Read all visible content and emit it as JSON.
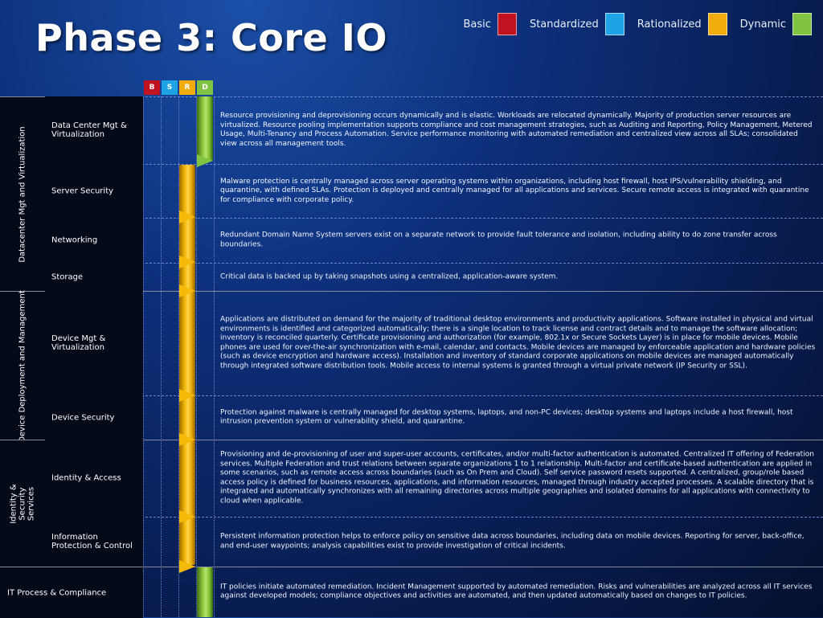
{
  "title": "Phase 3: Core IO",
  "legend": [
    {
      "label": "Basic",
      "color": "#c1121f"
    },
    {
      "label": "Standardized",
      "color": "#1ea3e6"
    },
    {
      "label": "Rationalized",
      "color": "#f0ac0c"
    },
    {
      "label": "Dynamic",
      "color": "#80c342"
    }
  ],
  "columns": {
    "b": "B",
    "s": "S",
    "r": "R",
    "d": "D"
  },
  "categories": {
    "datacenter": "Datacenter Mgt and Virtualization",
    "device": "Device Deployment and Management",
    "identity": "Identity & Security Services",
    "it_process": "IT Process & Compliance"
  },
  "rows": {
    "dc_mgt": {
      "label": "Data Center Mgt & Virtualization",
      "desc": "Resource provisioning and deprovisioning occurs dynamically and is elastic. Workloads are relocated dynamically. Majority of production server resources are virtualized. Resource pooling implementation supports compliance and cost management strategies, such as Auditing and Reporting, Policy Management, Metered Usage, Multi-Tenancy and Process Automation. Service performance monitoring with automated remediation and centralized view across all SLAs; consolidated view across all management tools."
    },
    "server_security": {
      "label": "Server Security",
      "desc": "Malware protection is centrally managed across server operating systems within organizations, including host firewall, host IPS/vulnerability shielding, and quarantine, with defined SLAs. Protection is deployed and centrally managed for all applications and services.  Secure remote access is integrated with quarantine for compliance with corporate policy."
    },
    "networking": {
      "label": "Networking",
      "desc": "Redundant Domain Name System servers exist on a separate network to provide fault tolerance and isolation, including ability to do zone transfer across boundaries."
    },
    "storage": {
      "label": "Storage",
      "desc": "Critical data is backed up by taking snapshots using a centralized, application-aware system."
    },
    "device_mgt": {
      "label": "Device Mgt & Virtualization",
      "desc": "Applications are distributed on demand for the majority of traditional desktop environments and productivity applications. Software installed in physical and virtual environments is identified and categorized automatically; there is a single location to track license and contract details and to manage the software allocation; inventory is reconciled quarterly. Certificate provisioning and authorization (for example, 802.1x or Secure Sockets Layer) is in place for mobile devices. Mobile phones are used for over-the-air synchronization with e-mail, calendar, and contacts. Mobile devices are managed by enforceable application and hardware policies (such as device encryption and hardware access). Installation and inventory of standard corporate applications on mobile devices are managed automatically through integrated software distribution tools. Mobile access to internal systems is granted through a virtual private network (IP Security or SSL)."
    },
    "device_security": {
      "label": "Device Security",
      "desc": "Protection against malware is centrally managed for desktop systems, laptops, and non-PC devices; desktop systems and laptops include a host firewall, host intrusion prevention system or vulnerability shield, and quarantine."
    },
    "identity_access": {
      "label": "Identity & Access",
      "desc": "Provisioning and de-provisioning of user and super-user accounts, certificates, and/or multi-factor authentication is automated. Centralized IT offering of Federation services. Multiple Federation and trust relations between separate organizations 1 to 1 relationship. Multi-factor and certificate-based authentication are applied in some scenarios, such as remote access across boundaries (such as On Prem and Cloud). Self service password resets supported. A centralized, group/role based access policy is defined for business resources, applications, and information resources, managed through industry accepted processes. A scalable directory that is integrated and automatically synchronizes with all remaining directories across multiple geographies and isolated domains for all applications with connectivity to cloud when applicable."
    },
    "info_protection": {
      "label": "Information Protection & Control",
      "desc": "Persistent information protection helps to enforce policy on sensitive data across boundaries, including data on mobile devices. Reporting for server, back-office, and end-user waypoints; analysis capabilities exist to provide investigation of critical incidents."
    },
    "it_process": {
      "desc": "IT policies initiate automated remediation. Incident Management supported by automated remediation. Risks and vulnerabilities are analyzed across all IT services against developed models; compliance objectives and activities are automated, and then updated automatically based on changes to IT policies."
    }
  }
}
